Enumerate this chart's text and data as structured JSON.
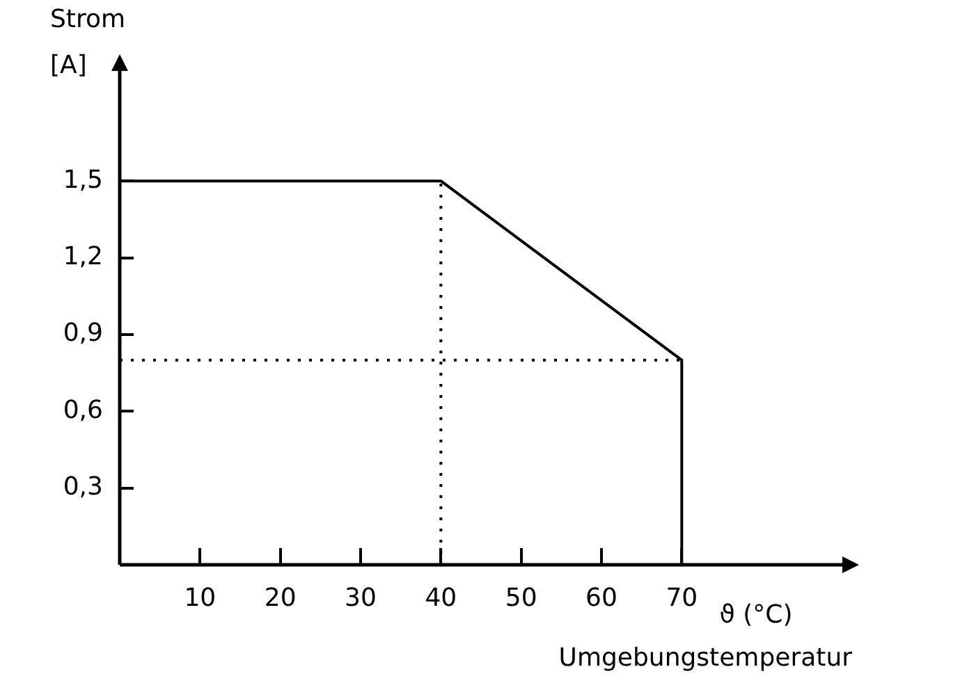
{
  "chart_data": {
    "type": "line",
    "ylabel": "Strom [A]",
    "xlabel": "ϑ (°C)",
    "annotations": [
      "Umgebungstemperatur"
    ],
    "xlim": [
      0,
      90
    ],
    "xticks": [
      10,
      20,
      30,
      40,
      50,
      60,
      70
    ],
    "ylim": [
      0,
      1.93
    ],
    "yticks": [
      {
        "value": 0.3,
        "label": "0,3"
      },
      {
        "value": 0.6,
        "label": "0,6"
      },
      {
        "value": 0.9,
        "label": "0,9"
      },
      {
        "value": 1.2,
        "label": "1,2"
      },
      {
        "value": 1.5,
        "label": "1,5"
      }
    ],
    "grid": false,
    "legend": false,
    "marker": "none",
    "series": [
      {
        "color": "#000000",
        "x": [
          0,
          40,
          70,
          70
        ],
        "values": [
          1.5,
          1.5,
          0.8,
          0
        ],
        "line_style": "solid"
      },
      {
        "color": "#000000",
        "x": [
          40,
          40
        ],
        "values": [
          0,
          1.5
        ],
        "line_style": "dotted"
      },
      {
        "color": "#000000",
        "x": [
          0,
          70
        ],
        "values": [
          0.8,
          0.8
        ],
        "line_style": "dotted"
      }
    ]
  }
}
